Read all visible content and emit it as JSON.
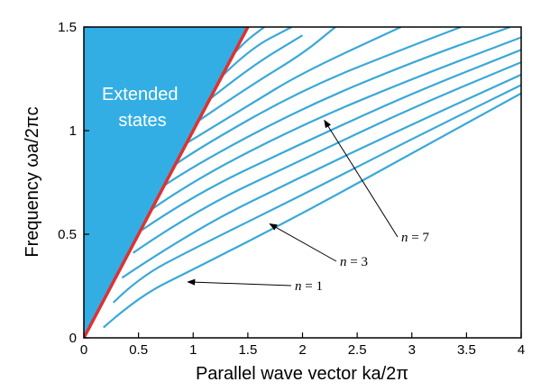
{
  "chart_data": {
    "type": "line",
    "title": "",
    "xlabel": "Parallel wave vector  ka/2π",
    "ylabel": "Frequency  ωa/2πc",
    "xlim": [
      0,
      4
    ],
    "ylim": [
      0,
      1.5
    ],
    "x_ticks": [
      "0",
      "0.5",
      "1",
      "1.5",
      "2",
      "2.5",
      "3",
      "3.5",
      "4"
    ],
    "y_ticks": [
      "0",
      "0.5",
      "1",
      "1.5"
    ],
    "grid": false,
    "legend": "none",
    "colors": {
      "band": "#3aa8d8",
      "light_line": "#e03030",
      "extended_fill": "#33aee4"
    },
    "region_label": [
      "Extended",
      "states"
    ],
    "light_line": {
      "x": [
        0,
        1.5
      ],
      "y": [
        0,
        1.5
      ]
    },
    "series": [
      {
        "x": [
          0.18,
          0.5,
          1.0,
          2.0,
          3.0,
          4.0
        ],
        "y": [
          0.05,
          0.2,
          0.33,
          0.6,
          0.89,
          1.18
        ]
      },
      {
        "x": [
          0.27,
          0.5,
          1.0,
          2.0,
          3.0,
          4.0
        ],
        "y": [
          0.17,
          0.29,
          0.43,
          0.69,
          0.96,
          1.22
        ]
      },
      {
        "x": [
          0.35,
          1.0,
          2.0,
          3.0,
          4.0
        ],
        "y": [
          0.29,
          0.52,
          0.78,
          1.03,
          1.27
        ]
      },
      {
        "x": [
          0.45,
          1.0,
          2.0,
          3.0,
          4.0
        ],
        "y": [
          0.41,
          0.61,
          0.86,
          1.11,
          1.33
        ]
      },
      {
        "x": [
          0.53,
          1.0,
          2.0,
          3.0,
          4.0
        ],
        "y": [
          0.52,
          0.69,
          0.94,
          1.18,
          1.39
        ]
      },
      {
        "x": [
          0.62,
          1.0,
          2.0,
          3.0,
          4.0
        ],
        "y": [
          0.62,
          0.76,
          1.03,
          1.25,
          1.45
        ]
      },
      {
        "x": [
          0.72,
          1.0,
          2.0,
          3.0,
          3.9
        ],
        "y": [
          0.73,
          0.83,
          1.11,
          1.33,
          1.5
        ]
      },
      {
        "x": [
          0.82,
          1.0,
          2.0,
          3.0,
          3.45
        ],
        "y": [
          0.83,
          0.9,
          1.2,
          1.41,
          1.5
        ]
      },
      {
        "x": [
          0.91,
          1.5,
          2.0,
          2.9
        ],
        "y": [
          0.93,
          1.12,
          1.28,
          1.5
        ]
      },
      {
        "x": [
          1.0,
          1.5,
          2.0,
          2.3
        ],
        "y": [
          1.03,
          1.21,
          1.37,
          1.5
        ]
      },
      {
        "x": [
          1.1,
          1.5,
          2.0
        ],
        "y": [
          1.13,
          1.3,
          1.46
        ]
      },
      {
        "x": [
          1.2,
          1.5,
          1.9
        ],
        "y": [
          1.23,
          1.39,
          1.5
        ]
      },
      {
        "x": [
          1.3,
          1.45,
          1.65
        ],
        "y": [
          1.33,
          1.42,
          1.5
        ]
      }
    ],
    "annotations": [
      {
        "text": "= 7",
        "var": "n",
        "points_to": [
          2.2,
          1.05
        ]
      },
      {
        "text": "= 3",
        "var": "n",
        "points_to": [
          1.7,
          0.55
        ]
      },
      {
        "text": "= 1",
        "var": "n",
        "points_to": [
          0.95,
          0.27
        ]
      }
    ]
  }
}
